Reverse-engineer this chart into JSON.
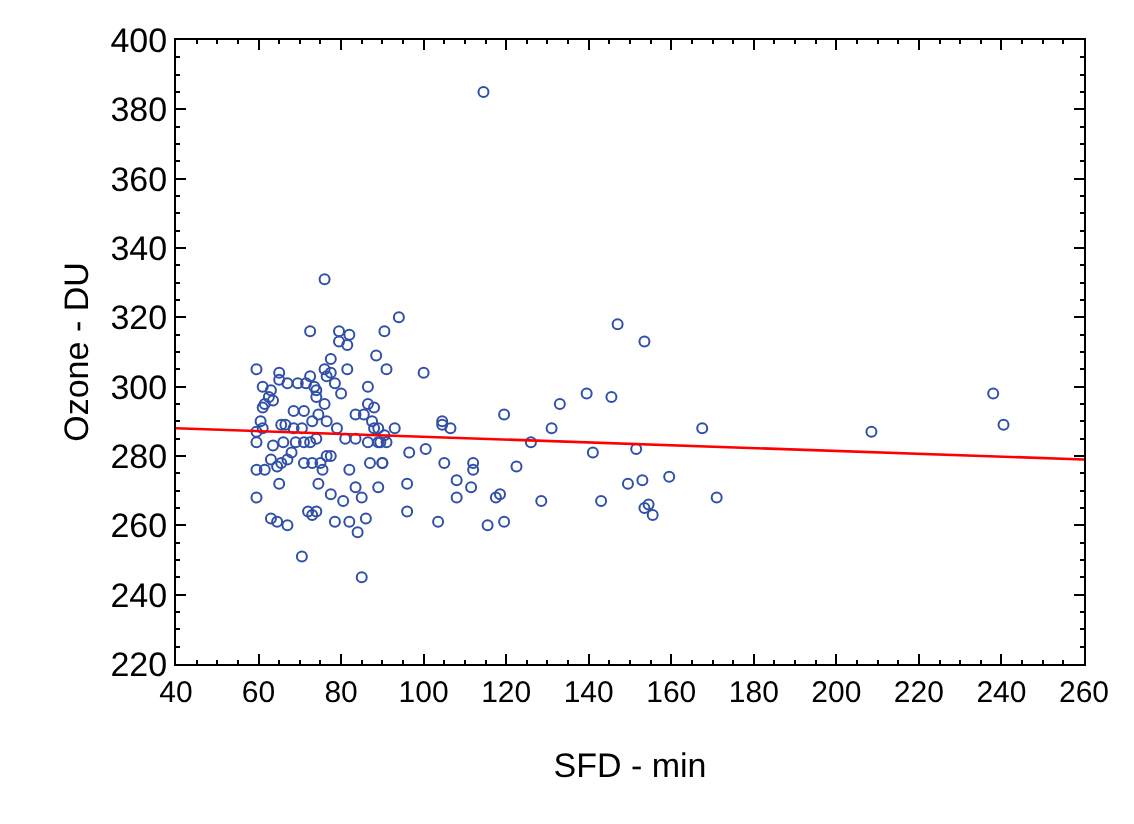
{
  "chart_data": {
    "type": "scatter",
    "xlabel": "SFD - min",
    "ylabel": "Ozone - DU",
    "xlim": [
      40,
      260
    ],
    "xticks": [
      40,
      60,
      80,
      100,
      120,
      140,
      160,
      180,
      200,
      220,
      240,
      260
    ],
    "ylim": [
      220,
      400
    ],
    "yticks": [
      220,
      240,
      260,
      280,
      300,
      320,
      340,
      360,
      380,
      400
    ],
    "series": [
      {
        "marker": "circle",
        "color": "#3050a8",
        "x": [
          114.5,
          94,
          90.5,
          88.5,
          91,
          100,
          88,
          89,
          93,
          89,
          91,
          90,
          89,
          96.5,
          100.5,
          104.5,
          104.5,
          106.5,
          105,
          119.5,
          108,
          112,
          112,
          111.5,
          108,
          96,
          96,
          103.5,
          115.5,
          119.5,
          117.5,
          118.5,
          122.5,
          126,
          128.5,
          131,
          133,
          139.5,
          141,
          143,
          145.5,
          147,
          153.5,
          151.5,
          149.5,
          153,
          153.5,
          154.5,
          155.5,
          159.5,
          167.5,
          171,
          208.5,
          238,
          240.5,
          76,
          72.5,
          79.5,
          82,
          79.5,
          81.5,
          77.5,
          59.5,
          65,
          65,
          72.5,
          76,
          77.5,
          76.5,
          78.5,
          81.5,
          69.5,
          67,
          71.5,
          73.5,
          74,
          61,
          63,
          62.5,
          61.5,
          61,
          63.5,
          86.5,
          80,
          86.5,
          85.5,
          76,
          74,
          68.5,
          71,
          73,
          74.5,
          76.5,
          79,
          83.5,
          87.5,
          88,
          60.5,
          61,
          59.5,
          59.5,
          65.5,
          66.5,
          68.5,
          70.5,
          69,
          71,
          66,
          63.5,
          63,
          61.5,
          59.5,
          74,
          72.5,
          76.5,
          75,
          77.5,
          81,
          83.5,
          86.5,
          89.5,
          90.5,
          68,
          67,
          65.5,
          64.5,
          71,
          73,
          82,
          87,
          90,
          59.5,
          65,
          74.5,
          75.5,
          77.5,
          80.5,
          83.5,
          85,
          63,
          64.5,
          67,
          72,
          74,
          73,
          78.5,
          82,
          84,
          86,
          70.5,
          85
        ],
        "values": [
          385,
          320,
          316,
          309,
          305,
          304,
          294,
          288,
          288,
          284,
          284,
          278,
          271,
          281,
          282,
          290,
          289,
          288,
          278,
          292,
          273,
          278,
          276,
          271,
          268,
          272,
          264,
          261,
          260,
          261,
          268,
          269,
          277,
          284,
          267,
          288,
          295,
          298,
          281,
          267,
          297,
          318,
          313,
          282,
          272,
          273,
          265,
          266,
          263,
          274,
          288,
          268,
          287,
          298,
          289,
          331,
          316,
          316,
          315,
          313,
          312,
          308,
          305,
          304,
          302,
          303,
          305,
          304,
          303,
          301,
          305,
          301,
          301,
          301,
          300,
          299,
          300,
          299,
          297,
          295,
          294,
          296,
          300,
          298,
          295,
          292,
          295,
          297,
          293,
          293,
          290,
          292,
          290,
          288,
          292,
          290,
          288,
          290,
          288,
          287,
          284,
          289,
          289,
          288,
          288,
          284,
          284,
          284,
          283,
          279,
          276,
          276,
          285,
          284,
          280,
          278,
          280,
          285,
          285,
          284,
          284,
          286,
          281,
          279,
          278,
          277,
          278,
          278,
          276,
          278,
          278,
          268,
          272,
          272,
          276,
          269,
          267,
          271,
          268,
          262,
          261,
          260,
          264,
          264,
          263,
          261,
          261,
          258,
          262,
          251,
          245
        ]
      },
      {
        "type": "line",
        "color": "#ff0000",
        "line_style": "solid",
        "marker": "none",
        "x": [
          40,
          260
        ],
        "values": [
          288,
          279
        ]
      }
    ]
  }
}
